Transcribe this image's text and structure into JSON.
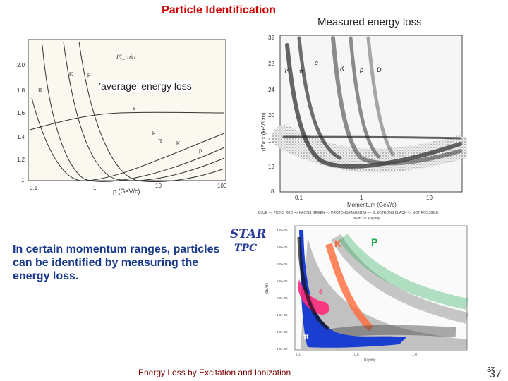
{
  "slide": {
    "title": "Particle Identification",
    "right_caption": "Measured energy loss",
    "left_caption": "’average’ energy loss",
    "body": "In certain momentum ranges, particles can be identified by measuring the energy loss.",
    "footer": "Energy Loss by Excitation and Ionization",
    "page_number_small": "37",
    "page_number": "37"
  },
  "left_plot": {
    "y_ticks": [
      "1",
      "1.2",
      "1.4",
      "1.6",
      "1.8",
      "2.0"
    ],
    "x_ticks": [
      "0.1",
      "1",
      "10",
      "100"
    ],
    "xlabel": "p (GeV/c)",
    "ylabel": "I/I_min",
    "curve_labels": [
      "π",
      "K",
      "p",
      "e",
      "μ",
      "π",
      "K",
      "p"
    ]
  },
  "right_plot": {
    "y_ticks": [
      "8",
      "12",
      "16",
      "20",
      "24",
      "28",
      "32"
    ],
    "x_ticks": [
      "0.1",
      "1",
      "10"
    ],
    "xlabel": "Momentum (GeV/c)",
    "ylabel": "dE/dx (keV/cm)",
    "band_labels": [
      "μ",
      "π",
      "e",
      "K",
      "p",
      "D"
    ]
  },
  "star_plot": {
    "logo_top": "STAR",
    "logo_bottom": "TPC",
    "legend": "BLUE => PIONS   RED => KAONS   GREEN => PROTONS   MAGENTA => ELECTRONS   BLACK => NOT POSSIBLE",
    "subtitle": "dE/dx vs. Rigidity",
    "band_labels": [
      "K",
      "P",
      "e",
      "π"
    ],
    "xlabel": "Rigidity",
    "ylabel": "dE/dx",
    "y_ticks": [
      "1.0e-07",
      "1.0e-06",
      "1.6e-06",
      "2.0e-06",
      "2.6e-06",
      "3.0e-06",
      "3.6e-06",
      "4.0e-06"
    ],
    "x_ticks": [
      "0.0",
      "0.5",
      "1.0"
    ]
  },
  "colors": {
    "title": "#cc0000",
    "body": "#1a3a8a",
    "pion": "#1a3fd0",
    "kaon": "#ff6a3a",
    "proton": "#22aa55",
    "electron": "#ff2a7a"
  }
}
